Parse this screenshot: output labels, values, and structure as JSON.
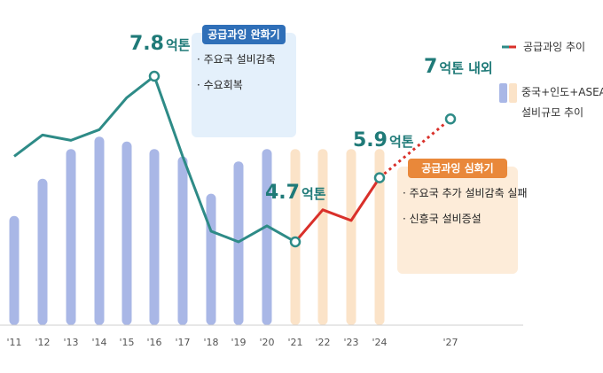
{
  "chart_data": {
    "type": "bar",
    "categories": [
      "'11",
      "'12",
      "'13",
      "'14",
      "'15",
      "'16",
      "'17",
      "'18",
      "'19",
      "'20",
      "'21",
      "'22",
      "'23",
      "'24",
      "'27"
    ],
    "series": [
      {
        "name": "중국+인도+ASEAN 설비규모 추이",
        "type": "bar",
        "values": [
          0.44,
          0.59,
          0.71,
          0.76,
          0.74,
          0.71,
          0.68,
          0.53,
          0.66,
          0.71,
          0.71,
          0.71,
          0.71,
          0.71,
          null
        ],
        "projected_from_index": 10
      },
      {
        "name": "공급과잉 추이",
        "type": "line",
        "values": [
          6.3,
          6.7,
          6.6,
          6.8,
          7.4,
          7.8,
          6.3,
          4.9,
          4.7,
          5.0,
          4.7,
          5.3,
          5.1,
          5.9,
          7.0
        ],
        "projected_from_index": 10,
        "dotted_from_index": 13
      }
    ],
    "annotations": [
      {
        "category": "'16",
        "text_num": "7.8",
        "text_unit": "억톤"
      },
      {
        "category": "'21",
        "text_num": "4.7",
        "text_unit": "억톤"
      },
      {
        "category": "'24",
        "text_num": "5.9",
        "text_unit": "억톤"
      },
      {
        "category": "'27",
        "text_num": "7",
        "text_unit": "억톤 내외"
      }
    ],
    "boxes": [
      {
        "title": "공급과잉 완화기",
        "items": [
          "주요국 설비감축",
          "수요회복"
        ]
      },
      {
        "title": "공급과잉 심화기",
        "items": [
          "주요국 추가 설비감축 실패",
          "신흥국 설비증설"
        ]
      }
    ],
    "legend": {
      "line_label": "공급과잉 추이",
      "bar_label_line1": "중국+인도+ASEAN",
      "bar_label_line2": "설비규모 추이",
      "placement": "top-right"
    },
    "colors": {
      "line": "#2e8b87",
      "line_projected": "#d9302a",
      "bar": "#a9b7e6",
      "bar_projected": "#fbe3c8",
      "box1_title_bg": "#2f6fb8",
      "box1_bg": "#e4f0fb",
      "box2_title_bg": "#e9883a",
      "box2_bg": "#fdecd9"
    }
  }
}
